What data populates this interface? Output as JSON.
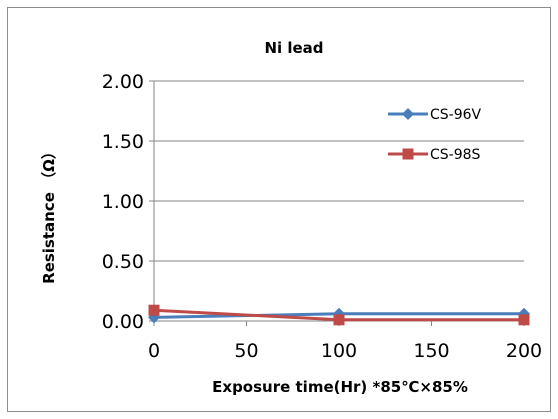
{
  "chart_data": {
    "type": "line",
    "title": "Ni lead",
    "xlabel": "Exposure time(Hr)  *85℃×85%",
    "ylabel": "Resistance （Ω）",
    "x": [
      0,
      100,
      200
    ],
    "xlim": [
      0,
      200
    ],
    "xticks": [
      "0",
      "50",
      "100",
      "150",
      "200"
    ],
    "xtick_values": [
      0,
      50,
      100,
      150,
      200
    ],
    "ylim": [
      0,
      2
    ],
    "yticks": [
      "0.00",
      "0.50",
      "1.00",
      "1.50",
      "2.00"
    ],
    "ytick_values": [
      0,
      0.5,
      1.0,
      1.5,
      2.0
    ],
    "grid": "horizontal",
    "legend_position": "right",
    "series": [
      {
        "name": "CS-96V",
        "values": [
          0.03,
          0.06,
          0.06
        ],
        "color": "#4a7ebb",
        "marker": "diamond"
      },
      {
        "name": "CS-98S",
        "values": [
          0.09,
          0.01,
          0.01
        ],
        "color": "#be4b48",
        "marker": "square"
      }
    ]
  }
}
